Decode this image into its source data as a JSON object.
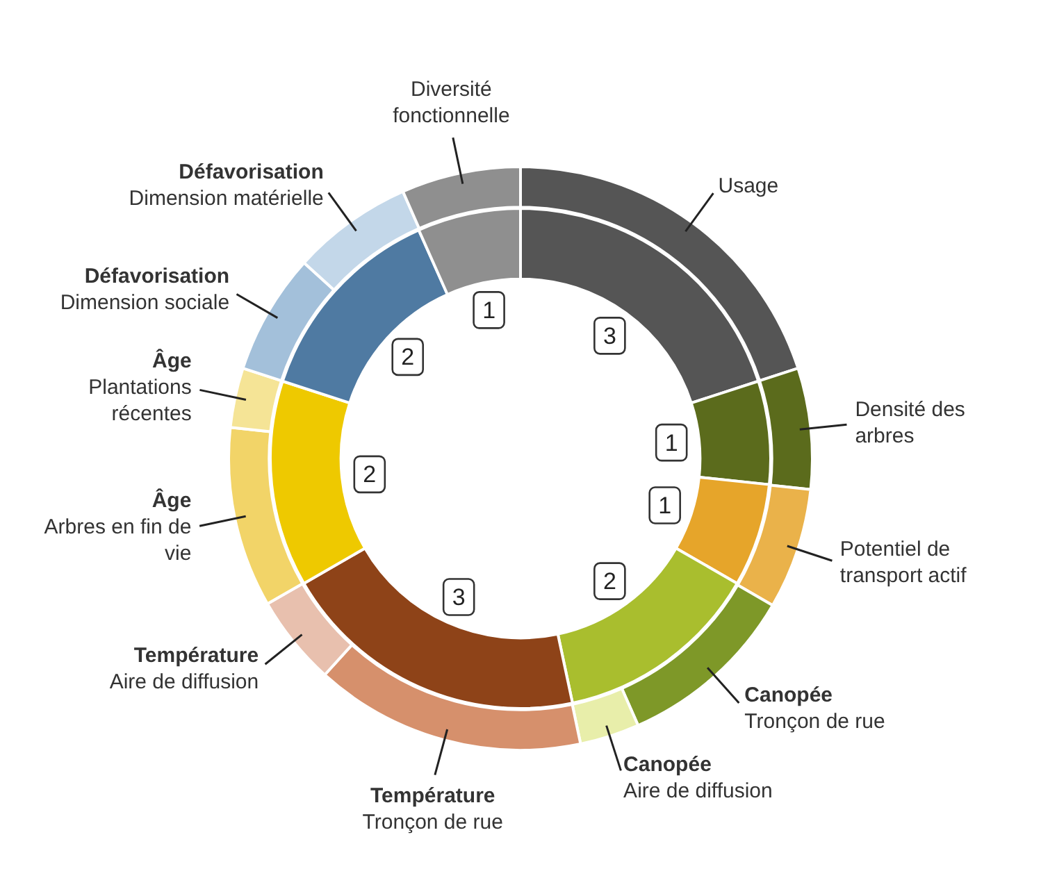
{
  "chart_data": [
    {
      "type": "donut",
      "categories": [
        "Usage",
        "Densité des arbres",
        "Potentiel de transport actif",
        "Canopée\nTronçon de rue",
        "Canopée\nAire de diffusion",
        "Température\nTronçon de rue",
        "Température\nAire de diffusion",
        "Âge\nArbres en fin de vie",
        "Âge\nPlantations récentes",
        "Défavorisation\nDimension sociale",
        "Défavorisation\nDimension matérielle",
        "Diversité fonctionnelle"
      ],
      "values": [
        20,
        6.7,
        6.7,
        10,
        3.3,
        15,
        5,
        10,
        3.3,
        6.7,
        6.7,
        6.6
      ],
      "colors": [
        "#555555",
        "#5b6b1c",
        "#eab24a",
        "#7e9828",
        "#e8eeaa",
        "#d6906c",
        "#e8c0ae",
        "#f2d468",
        "#f5e496",
        "#a3c0da",
        "#c3d7e9",
        "#8f8f8f"
      ]
    },
    {
      "type": "donut",
      "categories": [
        null,
        null,
        null,
        null,
        null,
        null,
        null,
        null
      ],
      "values": [
        3,
        1,
        1,
        2,
        3,
        2,
        2,
        1
      ],
      "colors": [
        "#555555",
        "#5b6b1c",
        "#e6a52a",
        "#a9be2e",
        "#8e4318",
        "#eec900",
        "#4f7aa2",
        "#8f8f8f"
      ],
      "data_labels": true
    }
  ]
}
